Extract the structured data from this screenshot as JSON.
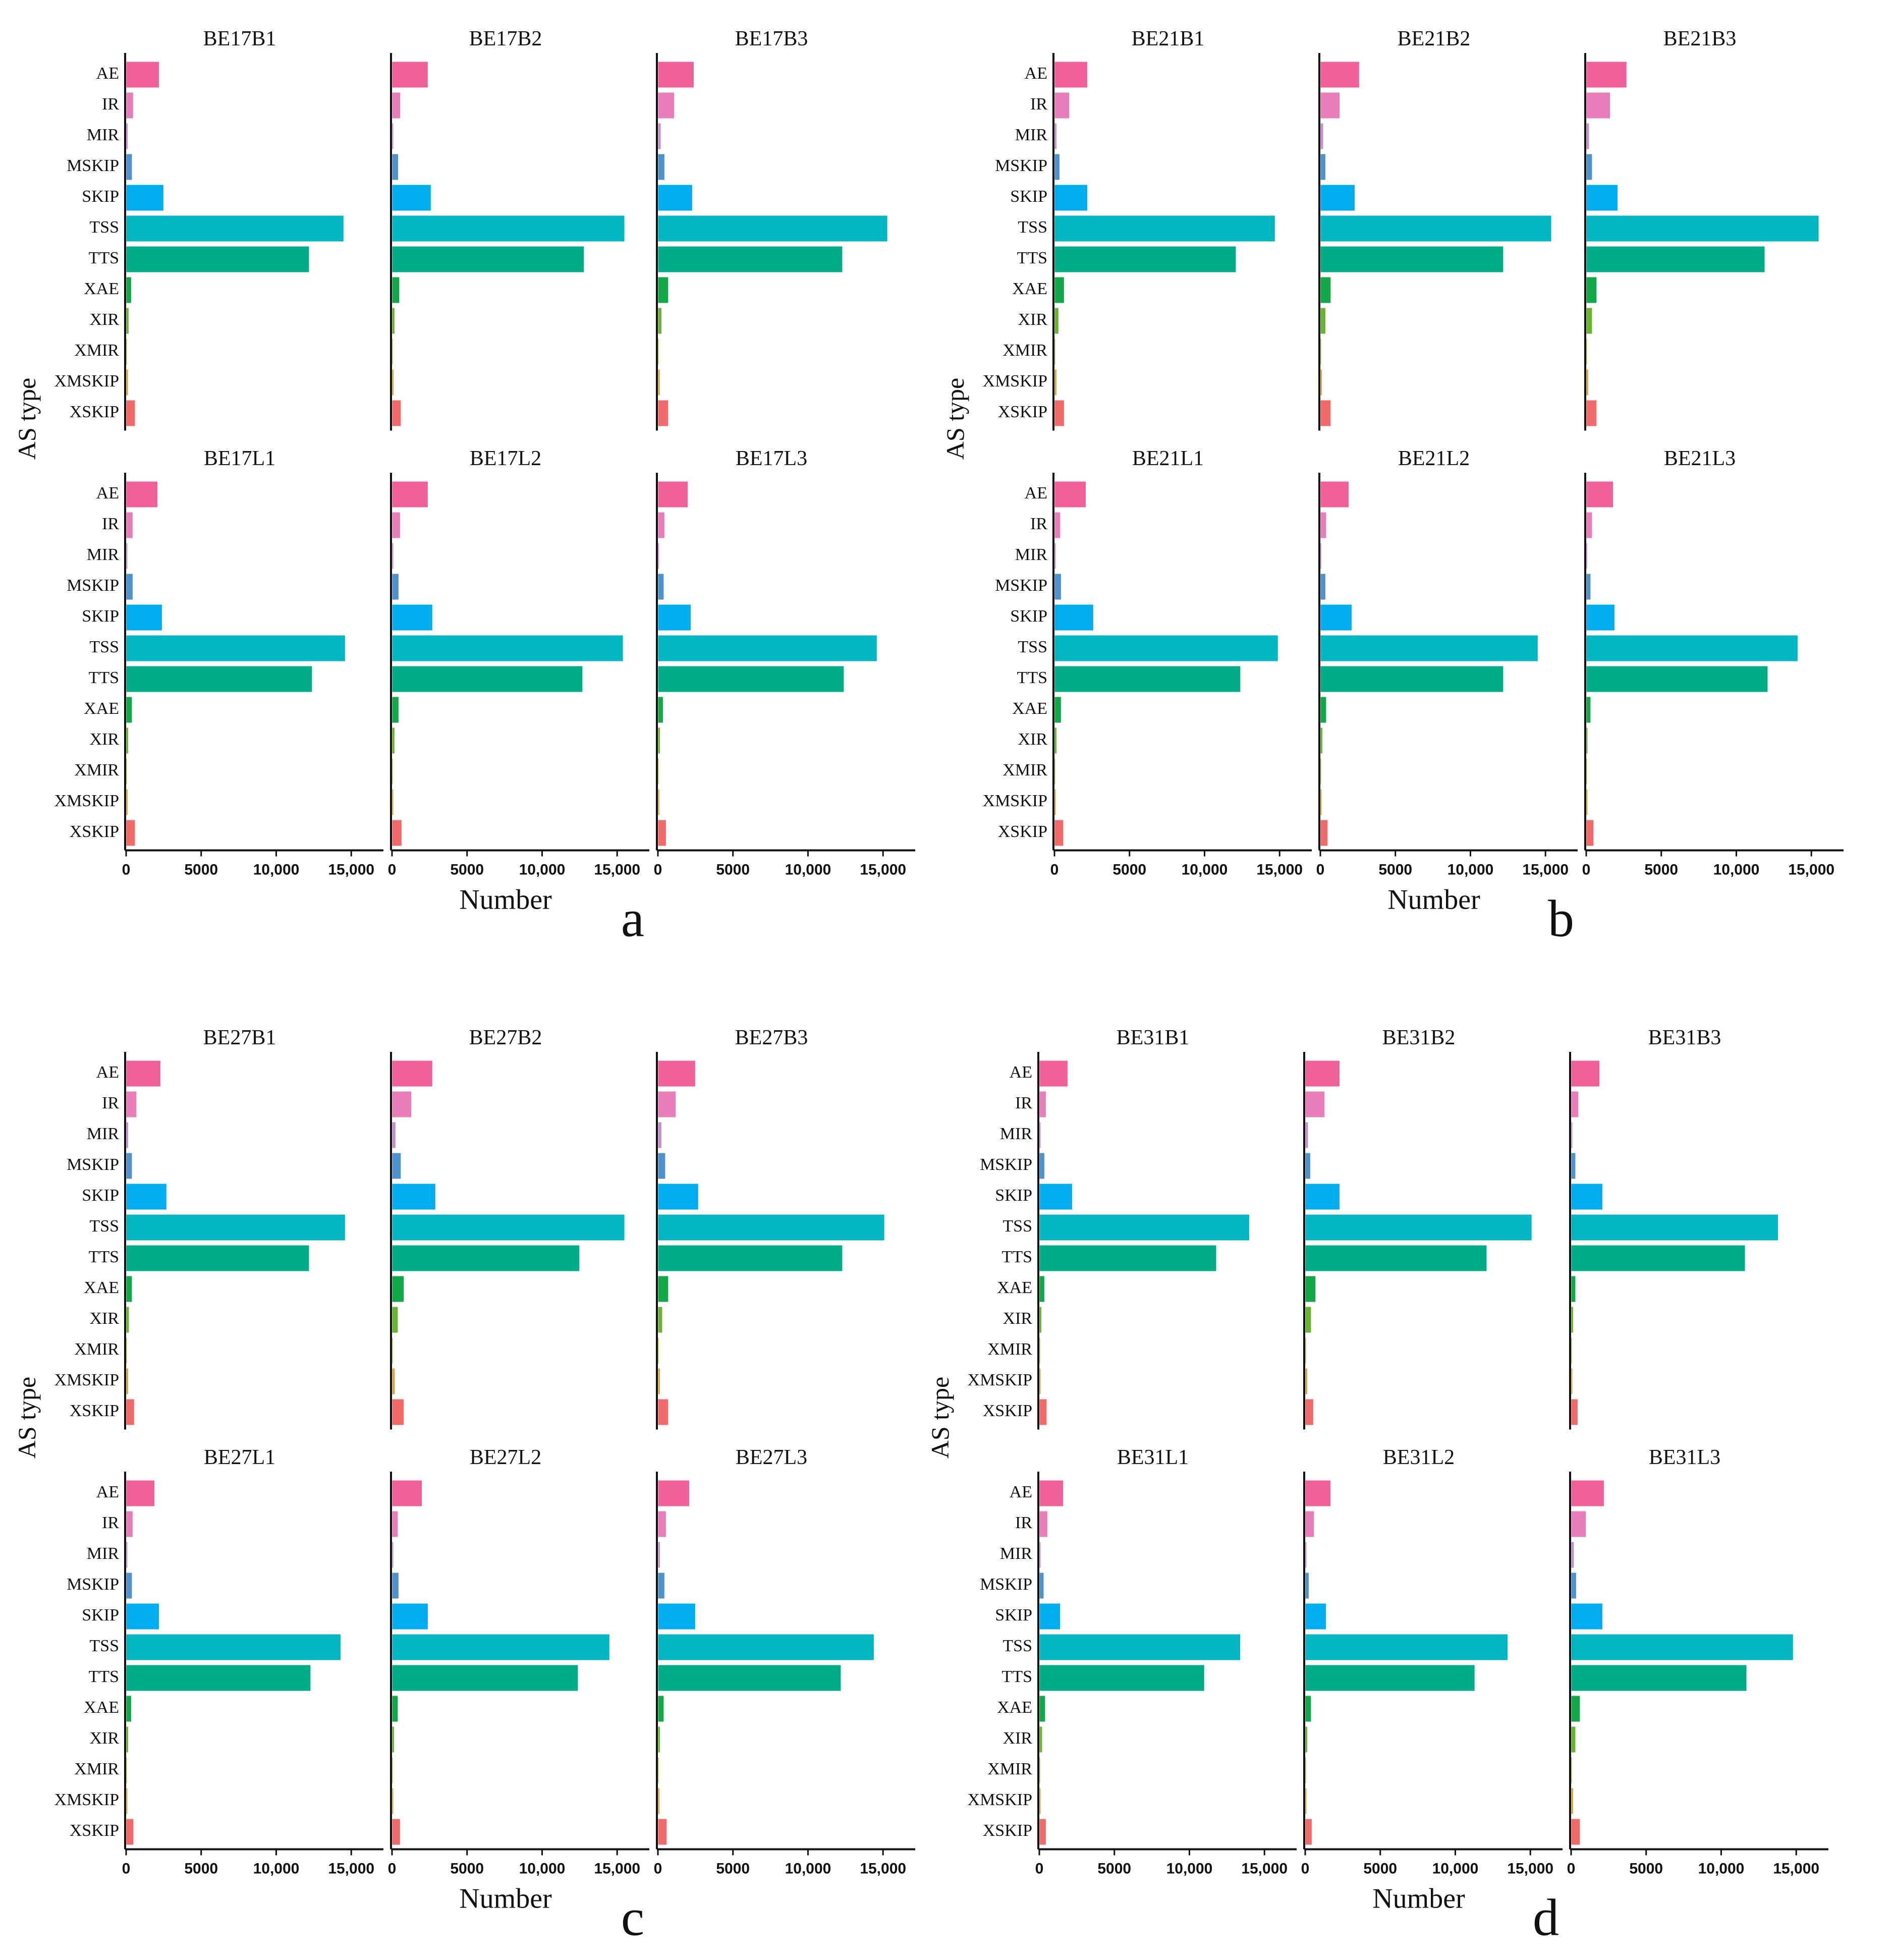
{
  "colors": {
    "AE": "#F0619C",
    "IR": "#E77DB9",
    "MIR": "#C78FC9",
    "MSKIP": "#4E91CD",
    "SKIP": "#00AEEF",
    "TSS": "#00B6C2",
    "TTS": "#00AC86",
    "XAE": "#12A84A",
    "XIR": "#6AB32F",
    "XMIR": "#A3AB1F",
    "XMSKIP": "#D9A63A",
    "XSKIP": "#F06A6A"
  },
  "figure": {
    "x_title": "Number",
    "y_title": "AS type"
  },
  "chart_data": [
    {
      "type": "bar",
      "orientation": "horizontal",
      "id": "a",
      "label": "a",
      "xlabel": "Number",
      "ylabel": "AS type",
      "xlim": [
        0,
        15800
      ],
      "xticks": [
        0,
        5000,
        10000,
        15000
      ],
      "xtick_labels": [
        "0",
        "5000",
        "10,000",
        "15,000"
      ],
      "categories": [
        "AE",
        "IR",
        "MIR",
        "MSKIP",
        "SKIP",
        "TSS",
        "TTS",
        "XAE",
        "XIR",
        "XMIR",
        "XMSKIP",
        "XSKIP"
      ],
      "rows": [
        {
          "series": [
            {
              "name": "BE17B1",
              "values": [
                2200,
                480,
                120,
                400,
                2500,
                14500,
                12200,
                350,
                180,
                60,
                140,
                600
              ]
            },
            {
              "name": "BE17B2",
              "values": [
                2400,
                560,
                100,
                420,
                2600,
                15500,
                12800,
                500,
                180,
                50,
                120,
                600
              ]
            },
            {
              "name": "BE17B3",
              "values": [
                2400,
                1100,
                200,
                450,
                2300,
                15300,
                12300,
                700,
                250,
                60,
                140,
                700
              ]
            }
          ]
        },
        {
          "series": [
            {
              "name": "BE17L1",
              "values": [
                2100,
                450,
                100,
                450,
                2400,
                14600,
                12400,
                400,
                150,
                50,
                120,
                600
              ]
            },
            {
              "name": "BE17L2",
              "values": [
                2400,
                550,
                100,
                450,
                2700,
                15400,
                12700,
                450,
                180,
                50,
                100,
                650
              ]
            },
            {
              "name": "BE17L3",
              "values": [
                2000,
                450,
                90,
                400,
                2200,
                14600,
                12400,
                350,
                150,
                50,
                110,
                550
              ]
            }
          ]
        }
      ]
    },
    {
      "type": "bar",
      "orientation": "horizontal",
      "id": "b",
      "label": "b",
      "xlabel": "Number",
      "ylabel": "AS type",
      "xlim": [
        0,
        15800
      ],
      "xticks": [
        0,
        5000,
        10000,
        15000
      ],
      "xtick_labels": [
        "0",
        "5000",
        "10,000",
        "15,000"
      ],
      "categories": [
        "AE",
        "IR",
        "MIR",
        "MSKIP",
        "SKIP",
        "TSS",
        "TTS",
        "XAE",
        "XIR",
        "XMIR",
        "XMSKIP",
        "XSKIP"
      ],
      "rows": [
        {
          "series": [
            {
              "name": "BE21B1",
              "values": [
                2200,
                1000,
                150,
                350,
                2200,
                14700,
                12100,
                650,
                280,
                60,
                150,
                650
              ]
            },
            {
              "name": "BE21B2",
              "values": [
                2600,
                1300,
                200,
                350,
                2300,
                15400,
                12200,
                700,
                350,
                60,
                120,
                700
              ]
            },
            {
              "name": "BE21B3",
              "values": [
                2700,
                1600,
                200,
                400,
                2100,
                15500,
                11900,
                700,
                400,
                60,
                150,
                700
              ]
            }
          ]
        },
        {
          "series": [
            {
              "name": "BE21L1",
              "values": [
                2100,
                400,
                100,
                450,
                2600,
                14900,
                12400,
                450,
                150,
                50,
                100,
                600
              ]
            },
            {
              "name": "BE21L2",
              "values": [
                1900,
                400,
                80,
                350,
                2100,
                14500,
                12200,
                400,
                150,
                50,
                100,
                500
              ]
            },
            {
              "name": "BE21L3",
              "values": [
                1800,
                400,
                80,
                300,
                1900,
                14100,
                12100,
                300,
                100,
                50,
                100,
                500
              ]
            }
          ]
        }
      ]
    },
    {
      "type": "bar",
      "orientation": "horizontal",
      "id": "c",
      "label": "c",
      "xlabel": "Number",
      "ylabel": "AS type",
      "xlim": [
        0,
        15800
      ],
      "xticks": [
        0,
        5000,
        10000,
        15000
      ],
      "xtick_labels": [
        "0",
        "5000",
        "10,000",
        "15,000"
      ],
      "categories": [
        "AE",
        "IR",
        "MIR",
        "MSKIP",
        "SKIP",
        "TSS",
        "TTS",
        "XAE",
        "XIR",
        "XMIR",
        "XMSKIP",
        "XSKIP"
      ],
      "rows": [
        {
          "series": [
            {
              "name": "BE27B1",
              "values": [
                2300,
                700,
                150,
                400,
                2700,
                14600,
                12200,
                400,
                200,
                60,
                150,
                550
              ]
            },
            {
              "name": "BE27B2",
              "values": [
                2700,
                1300,
                250,
                600,
                2900,
                15500,
                12500,
                800,
                400,
                60,
                200,
                800
              ]
            },
            {
              "name": "BE27B3",
              "values": [
                2500,
                1200,
                250,
                500,
                2700,
                15100,
                12300,
                700,
                300,
                60,
                150,
                700
              ]
            }
          ]
        },
        {
          "series": [
            {
              "name": "BE27L1",
              "values": [
                1900,
                450,
                100,
                400,
                2200,
                14300,
                12300,
                350,
                150,
                50,
                100,
                500
              ]
            },
            {
              "name": "BE27L2",
              "values": [
                2000,
                400,
                100,
                450,
                2400,
                14500,
                12400,
                400,
                150,
                50,
                100,
                550
              ]
            },
            {
              "name": "BE27L3",
              "values": [
                2100,
                550,
                150,
                450,
                2500,
                14400,
                12200,
                400,
                150,
                50,
                120,
                600
              ]
            }
          ]
        }
      ]
    },
    {
      "type": "bar",
      "orientation": "horizontal",
      "id": "d",
      "label": "d",
      "xlabel": "Number",
      "ylabel": "AS type",
      "xlim": [
        0,
        15800
      ],
      "xticks": [
        0,
        5000,
        10000,
        15000
      ],
      "xtick_labels": [
        "0",
        "5000",
        "10,000",
        "15,000"
      ],
      "categories": [
        "AE",
        "IR",
        "MIR",
        "MSKIP",
        "SKIP",
        "TSS",
        "TTS",
        "XAE",
        "XIR",
        "XMIR",
        "XMSKIP",
        "XSKIP"
      ],
      "rows": [
        {
          "series": [
            {
              "name": "BE31B1",
              "values": [
                1900,
                450,
                100,
                350,
                2200,
                14000,
                11800,
                350,
                150,
                50,
                100,
                500
              ]
            },
            {
              "name": "BE31B2",
              "values": [
                2300,
                1300,
                200,
                350,
                2300,
                15100,
                12100,
                700,
                400,
                60,
                150,
                550
              ]
            },
            {
              "name": "BE31B3",
              "values": [
                1900,
                500,
                100,
                300,
                2100,
                13800,
                11600,
                300,
                150,
                50,
                100,
                450
              ]
            }
          ]
        },
        {
          "series": [
            {
              "name": "BE31L1",
              "values": [
                1600,
                550,
                100,
                300,
                1400,
                13400,
                11000,
                400,
                200,
                50,
                100,
                450
              ]
            },
            {
              "name": "BE31L2",
              "values": [
                1700,
                600,
                100,
                250,
                1400,
                13500,
                11300,
                400,
                150,
                50,
                100,
                450
              ]
            },
            {
              "name": "BE31L3",
              "values": [
                2200,
                1000,
                200,
                350,
                2100,
                14800,
                11700,
                600,
                300,
                60,
                150,
                600
              ]
            }
          ]
        }
      ]
    }
  ]
}
